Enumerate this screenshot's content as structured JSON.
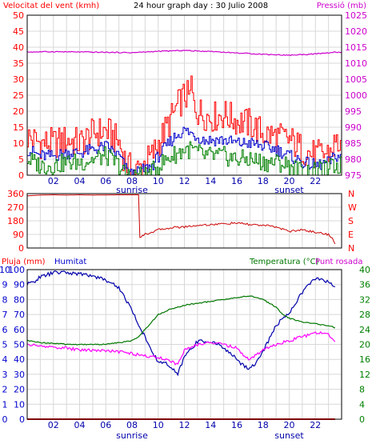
{
  "header": {
    "wind_label": "Velocitat del vent (kmh)",
    "title": "24 hour graph day : 30 Julio 2008",
    "pressure_label": "Pressió (mb)"
  },
  "colors": {
    "wind_gust": "#ff0000",
    "wind_avg": "#0000cc",
    "wind_low": "#008000",
    "pressure": "#cc00cc",
    "direction": "#cc0000",
    "rain": "#ff0000",
    "humidity": "#0000aa",
    "temperature": "#007700",
    "dewpoint": "#ff00ff",
    "frame": "#000000",
    "grid": "#d8d8d8",
    "left_axis_red": "#ff0000",
    "left_axis_blue": "#0000cc",
    "right_axis_green": "#008000",
    "right_axis_magenta": "#cc00cc"
  },
  "chart_data": [
    {
      "type": "line",
      "title": "24 hour graph day : 30 Julio 2008",
      "x_ticks": [
        "02",
        "04",
        "06",
        "08",
        "10",
        "12",
        "14",
        "16",
        "18",
        "20",
        "22"
      ],
      "x_annotations": [
        {
          "label": "sunrise",
          "hour": 8.0
        },
        {
          "label": "sunset",
          "hour": 20.0
        }
      ],
      "grid": true,
      "left_axis": {
        "label": "Velocitat del vent (kmh)",
        "ylim": [
          0,
          50
        ],
        "ticks": [
          0,
          5,
          10,
          15,
          20,
          25,
          30,
          35,
          40,
          45,
          50
        ]
      },
      "right_axis": {
        "label": "Pressió (mb)",
        "ylim": [
          975,
          1025
        ],
        "ticks": [
          975,
          980,
          985,
          990,
          995,
          1000,
          1005,
          1010,
          1015,
          1020,
          1025
        ]
      },
      "series": [
        {
          "axis": "left",
          "color_key": "wind_gust",
          "hours": [
            0,
            1,
            2,
            3,
            4,
            5,
            6,
            7,
            7.5,
            8,
            8.5,
            9,
            9.5,
            10,
            11,
            11.5,
            12,
            12.5,
            13,
            13.5,
            14,
            15,
            16,
            17,
            18,
            19,
            20,
            21,
            22,
            23,
            23.5
          ],
          "values": [
            12,
            10,
            10,
            11,
            10,
            13,
            14,
            10,
            4,
            1,
            2,
            4,
            6,
            10,
            18,
            22,
            25,
            24,
            20,
            19,
            18,
            19,
            17,
            16,
            13,
            12,
            11,
            8,
            6,
            7,
            10
          ]
        },
        {
          "axis": "left",
          "color_key": "wind_avg",
          "hours": [
            0,
            1,
            2,
            3,
            4,
            5,
            6,
            7,
            7.5,
            8,
            8.5,
            9,
            9.5,
            10,
            11,
            11.5,
            12,
            12.5,
            13,
            13.5,
            14,
            15,
            16,
            17,
            18,
            19,
            20,
            21,
            22,
            23,
            23.5
          ],
          "values": [
            8,
            6,
            6,
            7,
            7,
            8,
            9,
            6,
            2,
            0,
            1,
            2,
            3,
            6,
            11,
            13,
            14,
            13,
            12,
            11,
            11,
            11,
            10,
            10,
            9,
            8,
            6,
            4,
            3,
            4,
            6
          ]
        },
        {
          "axis": "left",
          "color_key": "wind_low",
          "hours": [
            0,
            1,
            2,
            3,
            4,
            5,
            6,
            7,
            7.5,
            8,
            8.5,
            9,
            9.5,
            10,
            11,
            11.5,
            12,
            12.5,
            13,
            13.5,
            14,
            15,
            16,
            17,
            18,
            19,
            20,
            21,
            22,
            23,
            23.5
          ],
          "values": [
            5,
            3,
            3,
            4,
            4,
            5,
            6,
            3,
            0,
            0,
            0,
            0,
            1,
            3,
            6,
            7,
            8,
            8,
            7,
            6,
            6,
            6,
            5,
            5,
            4,
            4,
            3,
            1,
            1,
            2,
            3
          ]
        },
        {
          "axis": "right",
          "color_key": "pressure",
          "hours": [
            0,
            2,
            4,
            6,
            8,
            10,
            12,
            13,
            14,
            16,
            18,
            20,
            22,
            23.5
          ],
          "values": [
            1013.5,
            1013.6,
            1013.5,
            1013.4,
            1013.3,
            1013.7,
            1014.0,
            1013.8,
            1013.7,
            1013.2,
            1012.8,
            1012.5,
            1012.9,
            1013.4
          ]
        }
      ]
    },
    {
      "type": "line",
      "title": "",
      "x_ticks": [
        "02",
        "04",
        "06",
        "08",
        "10",
        "12",
        "14",
        "16",
        "18",
        "20",
        "22"
      ],
      "grid": true,
      "left_axis": {
        "label": "",
        "ylim": [
          0,
          360
        ],
        "ticks": [
          0,
          90,
          180,
          270,
          360
        ]
      },
      "right_axis": {
        "label": "",
        "ticks": [
          "N",
          "E",
          "S",
          "W",
          "N"
        ]
      },
      "right_axis_letters": [
        "N",
        "W",
        "S",
        "E",
        "N"
      ],
      "series": [
        {
          "axis": "left",
          "color_key": "direction",
          "hours": [
            0,
            0.5,
            1,
            2,
            3,
            4,
            5,
            6,
            7,
            8,
            8.5,
            8.6,
            9,
            10,
            11,
            12,
            13,
            14,
            15,
            16,
            17,
            18,
            19,
            20,
            21,
            22,
            23,
            23.3,
            23.6
          ],
          "values": [
            345,
            348,
            350,
            352,
            350,
            352,
            350,
            351,
            352,
            352,
            352,
            70,
            90,
            120,
            135,
            140,
            150,
            155,
            160,
            165,
            155,
            150,
            140,
            110,
            120,
            105,
            90,
            60,
            10
          ]
        }
      ]
    },
    {
      "type": "line",
      "title": "",
      "x_ticks": [
        "02",
        "04",
        "06",
        "08",
        "10",
        "12",
        "14",
        "16",
        "18",
        "20",
        "22"
      ],
      "x_annotations": [
        {
          "label": "sunrise",
          "hour": 8.0
        },
        {
          "label": "sunset",
          "hour": 20.0
        }
      ],
      "grid": true,
      "left_axis_1": {
        "label": "Pluja (mm)",
        "ylim": [
          0,
          10
        ],
        "ticks": [
          "0",
          "1",
          "2",
          "3",
          "4",
          "5",
          "6",
          "7",
          "8",
          "9",
          "10"
        ]
      },
      "left_axis_2": {
        "label": "Humitat",
        "ylim": [
          0,
          100
        ],
        "ticks": [
          "0",
          "10",
          "20",
          "30",
          "40",
          "50",
          "60",
          "70",
          "80",
          "90",
          "100"
        ]
      },
      "right_axis": {
        "label": "Temperatura (°C)",
        "label_2": "Punt rosada",
        "ylim": [
          0,
          40
        ],
        "ticks": [
          "0",
          "4",
          "8",
          "12",
          "16",
          "20",
          "24",
          "28",
          "32",
          "36",
          "40"
        ]
      },
      "series": [
        {
          "axis": "left_2",
          "color_key": "humidity",
          "hours": [
            0,
            0.5,
            1,
            2,
            3,
            4,
            5,
            6,
            7,
            8,
            8.5,
            9,
            9.5,
            10,
            10.5,
            11,
            11.5,
            12,
            13,
            14,
            15,
            15.5,
            16,
            16.5,
            17,
            17.5,
            18,
            18.5,
            19,
            20,
            21,
            21.5,
            22,
            23,
            23.5
          ],
          "values": [
            90,
            92,
            95,
            98,
            98,
            97,
            96,
            93,
            88,
            73,
            63,
            55,
            46,
            38,
            38,
            34,
            30,
            42,
            52,
            52,
            48,
            44,
            40,
            36,
            34,
            38,
            45,
            54,
            63,
            71,
            85,
            90,
            94,
            92,
            88
          ]
        },
        {
          "axis": "right",
          "color_key": "temperature",
          "hours": [
            0,
            1,
            2,
            3,
            4,
            5,
            6,
            7,
            8,
            8.5,
            9,
            10,
            11,
            12,
            13,
            14,
            15,
            16,
            17,
            18,
            19,
            19.5,
            20,
            21,
            22,
            23,
            23.5
          ],
          "values": [
            21,
            20.5,
            20.3,
            20,
            20,
            20,
            20,
            20.5,
            21,
            22,
            24,
            28,
            29.5,
            30.5,
            31,
            31.5,
            32,
            32.5,
            33,
            32,
            30,
            28,
            27,
            26,
            25.5,
            25,
            24.5
          ]
        },
        {
          "axis": "right",
          "color_key": "dewpoint",
          "hours": [
            0,
            1,
            2,
            3,
            4,
            5,
            6,
            7,
            8,
            9,
            10,
            11,
            11.5,
            12,
            13,
            14,
            15,
            16,
            16.5,
            17,
            18,
            19,
            20,
            21,
            22,
            22.5,
            23,
            23.5
          ],
          "values": [
            20,
            19.5,
            19.3,
            19,
            18.5,
            18.5,
            18.3,
            18,
            17.5,
            17,
            16.5,
            15.5,
            14.5,
            18.5,
            20,
            20.5,
            20,
            19,
            17,
            16,
            18.5,
            20,
            21,
            22,
            23,
            23,
            22.5,
            21
          ]
        },
        {
          "axis": "left_1",
          "color_key": "rain",
          "hours": [
            0,
            23.5
          ],
          "values": [
            0,
            0
          ]
        }
      ]
    }
  ]
}
